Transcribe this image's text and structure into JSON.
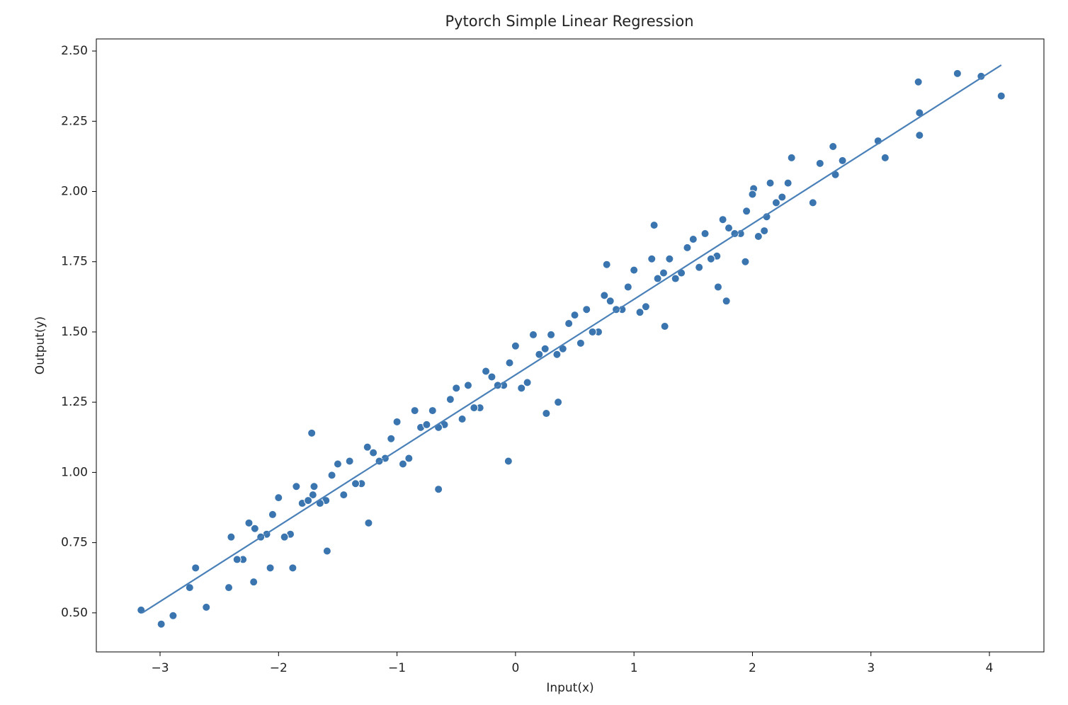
{
  "chart_data": {
    "type": "scatter",
    "title": "Pytorch Simple Linear Regression",
    "x_label": "Input(x)",
    "y_label": "Output(y)",
    "xlim": [
      -3.538,
      4.46
    ],
    "ylim": [
      0.361,
      2.543
    ],
    "xticks": [
      {
        "value": -3,
        "label": "−3"
      },
      {
        "value": -2,
        "label": "−2"
      },
      {
        "value": -1,
        "label": "−1"
      },
      0,
      1,
      2,
      3,
      4
    ],
    "yticks": [
      {
        "value": 0.5,
        "label": "0.50"
      },
      {
        "value": 0.75,
        "label": "0.75"
      },
      {
        "value": 1.0,
        "label": "1.00"
      },
      {
        "value": 1.25,
        "label": "1.25"
      },
      {
        "value": 1.5,
        "label": "1.50"
      },
      {
        "value": 1.75,
        "label": "1.75"
      },
      {
        "value": 2.0,
        "label": "2.00"
      },
      {
        "value": 2.25,
        "label": "2.25"
      },
      {
        "value": 2.5,
        "label": "2.50"
      }
    ],
    "grid": false,
    "series": [
      {
        "color": "#3a75b0",
        "x": [
          4.1,
          3.93,
          3.73,
          3.4,
          3.41,
          3.41,
          3.12,
          3.06,
          2.68,
          2.7,
          2.76,
          2.57,
          2.51,
          2.33,
          1.78,
          1.17,
          -0.06,
          -0.65,
          -1.72,
          -3.16,
          -2.99,
          -2.89,
          -2.61,
          -2.75,
          -2.7,
          -2.42,
          -2.21,
          -1.88,
          -2.07,
          -1.59,
          -1.24,
          0.26,
          0.36,
          -1.71,
          0.77,
          2.01,
          2.12,
          1.94,
          1.71,
          1.26,
          -2.4,
          -2.3,
          -2.2,
          -2.1,
          -2.0,
          -1.9,
          -1.8,
          -1.7,
          -1.6,
          -1.5,
          -1.4,
          -1.3,
          -1.2,
          -1.1,
          -1.0,
          -0.9,
          -0.8,
          -0.7,
          -0.6,
          -0.5,
          -0.4,
          -0.3,
          -0.2,
          -0.1,
          0.0,
          0.1,
          0.2,
          0.3,
          0.4,
          0.5,
          0.6,
          0.7,
          0.8,
          0.9,
          1.0,
          1.1,
          1.2,
          1.3,
          1.4,
          1.5,
          1.6,
          1.7,
          1.8,
          1.9,
          2.0,
          2.1,
          2.2,
          2.3,
          -2.35,
          -2.25,
          -2.15,
          -2.05,
          -1.95,
          -1.85,
          -1.75,
          -1.65,
          -1.55,
          -1.45,
          -1.35,
          -1.25,
          -1.15,
          -1.05,
          -0.95,
          -0.85,
          -0.75,
          -0.65,
          -0.55,
          -0.45,
          -0.35,
          -0.25,
          -0.15,
          -0.05,
          0.05,
          0.15,
          0.25,
          0.35,
          0.45,
          0.55,
          0.65,
          0.75,
          0.85,
          0.95,
          1.05,
          1.15,
          1.25,
          1.35,
          1.45,
          1.55,
          1.65,
          1.75,
          1.85,
          1.95,
          2.05,
          2.15,
          2.25
        ],
        "values": [
          2.34,
          2.41,
          2.42,
          2.39,
          2.28,
          2.2,
          2.12,
          2.18,
          2.16,
          2.06,
          2.11,
          2.1,
          1.96,
          2.12,
          1.61,
          1.88,
          1.04,
          0.94,
          1.14,
          0.51,
          0.46,
          0.49,
          0.52,
          0.59,
          0.66,
          0.59,
          0.61,
          0.66,
          0.66,
          0.72,
          0.82,
          1.21,
          1.25,
          0.92,
          1.74,
          2.01,
          1.91,
          1.75,
          1.66,
          1.52,
          0.77,
          0.69,
          0.8,
          0.78,
          0.91,
          0.78,
          0.89,
          0.95,
          0.9,
          1.03,
          1.04,
          0.96,
          1.07,
          1.05,
          1.18,
          1.05,
          1.16,
          1.22,
          1.17,
          1.3,
          1.31,
          1.23,
          1.34,
          1.31,
          1.45,
          1.32,
          1.42,
          1.49,
          1.44,
          1.56,
          1.58,
          1.5,
          1.61,
          1.58,
          1.72,
          1.59,
          1.69,
          1.76,
          1.71,
          1.83,
          1.85,
          1.77,
          1.87,
          1.85,
          1.99,
          1.86,
          1.96,
          2.03,
          0.69,
          0.82,
          0.77,
          0.85,
          0.77,
          0.95,
          0.9,
          0.89,
          0.99,
          0.92,
          0.96,
          1.09,
          1.04,
          1.12,
          1.03,
          1.22,
          1.17,
          1.16,
          1.26,
          1.19,
          1.23,
          1.36,
          1.31,
          1.39,
          1.3,
          1.49,
          1.44,
          1.42,
          1.53,
          1.46,
          1.5,
          1.63,
          1.58,
          1.66,
          1.57,
          1.76,
          1.71,
          1.69,
          1.8,
          1.73,
          1.76,
          1.9,
          1.85,
          1.93,
          1.84,
          2.03,
          1.98
        ]
      }
    ],
    "fit_line": {
      "color": "#4a80b8",
      "x": [
        -3.15,
        4.1
      ],
      "values": [
        0.5,
        2.45
      ]
    }
  }
}
